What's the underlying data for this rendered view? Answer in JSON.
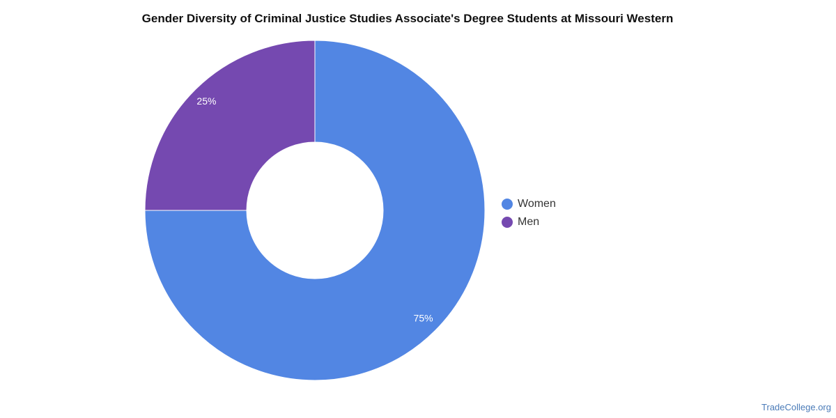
{
  "chart_data": {
    "type": "pie",
    "title": "Gender Diversity of Criminal Justice Studies Associate's Degree Students at Missouri Western",
    "slices": [
      {
        "name": "Women",
        "value": 75,
        "label": "75%",
        "color": "#5286e3"
      },
      {
        "name": "Men",
        "value": 25,
        "label": "25%",
        "color": "#7549b0"
      }
    ],
    "donut": true,
    "legend_position": "right"
  },
  "watermark": "TradeCollege.org"
}
